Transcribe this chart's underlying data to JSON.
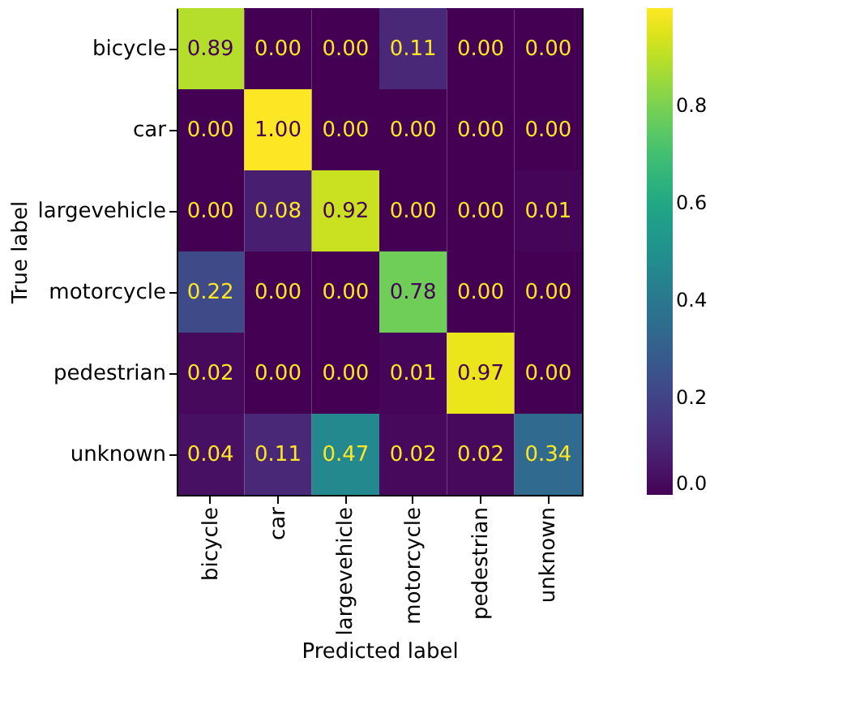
{
  "chart_data": {
    "type": "heatmap",
    "xlabel": "Predicted label",
    "ylabel": "True label",
    "categories": [
      "bicycle",
      "car",
      "largevehicle",
      "motorcycle",
      "pedestrian",
      "unknown"
    ],
    "y_categories": [
      "bicycle",
      "car",
      "largevehicle",
      "motorcycle",
      "pedestrian",
      "unknown"
    ],
    "cells": [
      [
        0.89,
        0.0,
        0.0,
        0.11,
        0.0,
        0.0
      ],
      [
        0.0,
        1.0,
        0.0,
        0.0,
        0.0,
        0.0
      ],
      [
        0.0,
        0.08,
        0.92,
        0.0,
        0.0,
        0.01
      ],
      [
        0.22,
        0.0,
        0.0,
        0.78,
        0.0,
        0.0
      ],
      [
        0.02,
        0.0,
        0.0,
        0.01,
        0.97,
        0.0
      ],
      [
        0.04,
        0.11,
        0.47,
        0.02,
        0.02,
        0.34
      ]
    ],
    "cell_labels": [
      [
        "0.89",
        "0.00",
        "0.00",
        "0.11",
        "0.00",
        "0.00"
      ],
      [
        "0.00",
        "1.00",
        "0.00",
        "0.00",
        "0.00",
        "0.00"
      ],
      [
        "0.00",
        "0.08",
        "0.92",
        "0.00",
        "0.00",
        "0.01"
      ],
      [
        "0.22",
        "0.00",
        "0.00",
        "0.78",
        "0.00",
        "0.00"
      ],
      [
        "0.02",
        "0.00",
        "0.00",
        "0.01",
        "0.97",
        "0.00"
      ],
      [
        "0.04",
        "0.11",
        "0.47",
        "0.02",
        "0.02",
        "0.34"
      ]
    ],
    "clim": [
      0.0,
      1.0
    ],
    "cticks": [
      {
        "value": 0.0,
        "label": "0.0"
      },
      {
        "value": 0.2,
        "label": "0.2"
      },
      {
        "value": 0.4,
        "label": "0.4"
      },
      {
        "value": 0.6,
        "label": "0.6"
      },
      {
        "value": 0.8,
        "label": "0.8"
      }
    ],
    "data_labels": true,
    "grid": false
  }
}
